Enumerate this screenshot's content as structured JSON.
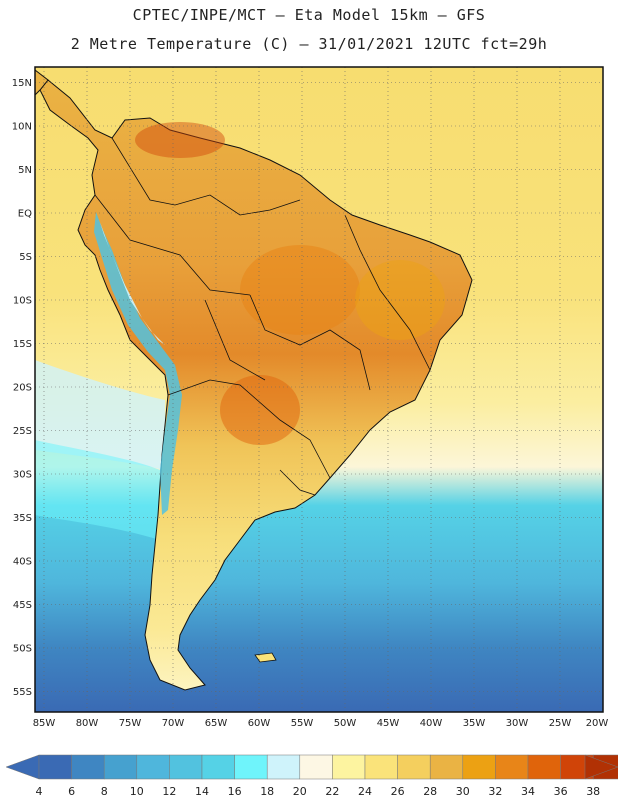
{
  "header": {
    "title_line1": "CPTEC/INPE/MCT –  Eta Model 15km – GFS",
    "title_line2": "2 Metre Temperature (C) – 31/01/2021 12UTC fct=29h"
  },
  "map": {
    "lat_labels": [
      "15N",
      "10N",
      "5N",
      "EQ",
      "5S",
      "10S",
      "15S",
      "20S",
      "25S",
      "30S",
      "35S",
      "40S",
      "45S",
      "50S",
      "55S"
    ],
    "lon_labels": [
      "85W",
      "80W",
      "75W",
      "70W",
      "65W",
      "60W",
      "55W",
      "50W",
      "45W",
      "40W",
      "35W",
      "30W",
      "25W",
      "20W"
    ]
  },
  "legend": {
    "labels": [
      "4",
      "6",
      "8",
      "10",
      "12",
      "14",
      "16",
      "18",
      "20",
      "22",
      "24",
      "26",
      "28",
      "30",
      "32",
      "34",
      "36",
      "38"
    ],
    "colors": [
      "#3a6ab4",
      "#3f86c2",
      "#46a1cf",
      "#4fb6dc",
      "#52c2df",
      "#55d2e6",
      "#6ff4fb",
      "#cff3fb",
      "#fdf7e4",
      "#fdf4a0",
      "#fae37a",
      "#f4cf5e",
      "#eab344",
      "#eca113",
      "#e88518",
      "#e0640b",
      "#d04408",
      "#b13104"
    ],
    "left_arrow_color": "#3a6ab4",
    "right_arrow_color": "#b13104"
  }
}
